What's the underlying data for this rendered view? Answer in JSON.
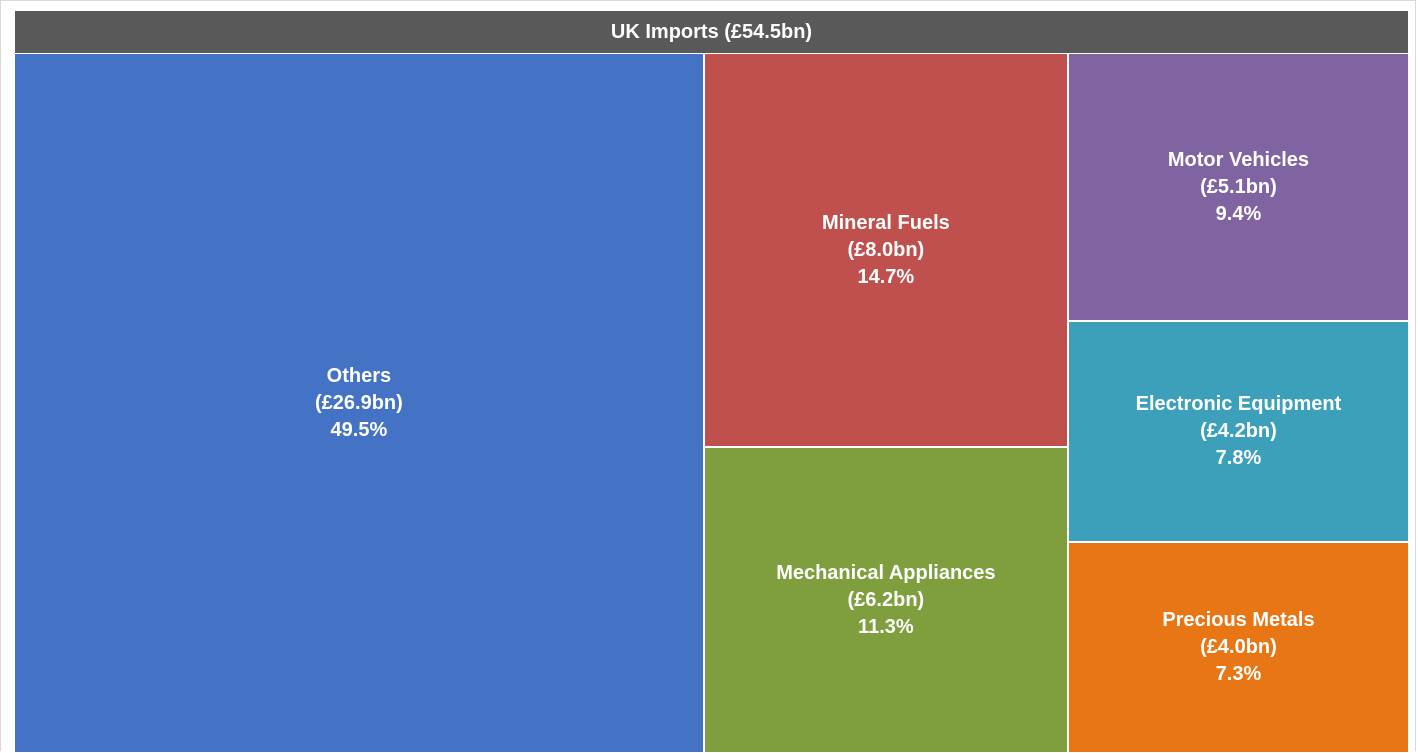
{
  "chart_data": {
    "type": "treemap",
    "title": "UK Imports (£54.5bn)",
    "categories": [
      "Others",
      "Mineral Fuels",
      "Mechanical Appliances",
      "Motor Vehicles",
      "Electronic Equipment",
      "Precious Metals"
    ],
    "values": [
      26.9,
      8.0,
      6.2,
      5.1,
      4.2,
      4.0
    ],
    "value_labels": [
      "(£26.9bn)",
      "(£8.0bn)",
      "(£6.2bn)",
      "(£5.1bn)",
      "(£4.2bn)",
      "(£4.0bn)"
    ],
    "percentages": [
      49.5,
      14.7,
      11.3,
      9.4,
      7.8,
      7.3
    ],
    "percentage_labels": [
      "49.5%",
      "14.7%",
      "11.3%",
      "9.4%",
      "7.8%",
      "7.3%"
    ],
    "colors": [
      "#4472c4",
      "#c0504d",
      "#7f9f3e",
      "#8064a2",
      "#3ca0bb",
      "#e87614"
    ]
  }
}
